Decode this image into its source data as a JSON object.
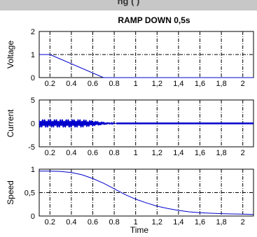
{
  "header_strip": {
    "text": "ng (           )"
  },
  "title": "RAMP DOWN 0,5s",
  "chart_data": [
    {
      "type": "line",
      "ylabel": "Voltage",
      "xlim": [
        0.1,
        2.1
      ],
      "ylim": [
        0,
        2
      ],
      "x_ticks": [
        "0.2",
        "0.4",
        "0.6",
        "0.8",
        "1",
        "1,2",
        "1,4",
        "1,6",
        "1,8",
        "2"
      ],
      "y_ticks": [
        "0",
        "1",
        "2"
      ],
      "grid": true,
      "color": "#0000cc",
      "x": [
        0.1,
        0.2,
        0.7,
        0.72,
        2.1
      ],
      "y": [
        1,
        1,
        0,
        0,
        0
      ]
    },
    {
      "type": "line",
      "ylabel": "Current",
      "xlim": [
        0.1,
        2.1
      ],
      "ylim": [
        -5,
        5
      ],
      "x_ticks": [
        "0.2",
        "0.4",
        "0.6",
        "0.8",
        "1",
        "1,2",
        "1,4",
        "1,6",
        "1,8",
        "2"
      ],
      "y_ticks": [
        "-5",
        "0",
        "5"
      ],
      "grid": true,
      "color": "#0000cc",
      "oscillation": {
        "x_start": 0.1,
        "x_end": 0.82,
        "amplitude_start": 0.9,
        "amplitude_peak": 0.9,
        "peak_x": 0.5,
        "decay_to": 0.0
      }
    },
    {
      "type": "line",
      "ylabel": "Speed",
      "xlabel": "Time",
      "xlim": [
        0.1,
        2.1
      ],
      "ylim": [
        0,
        1
      ],
      "x_ticks": [
        "0.2",
        "0.4",
        "0.6",
        "0.8",
        "1",
        "1,2",
        "1,4",
        "1,6",
        "1,8",
        "2"
      ],
      "y_ticks": [
        "0",
        "0,5",
        "1"
      ],
      "grid": true,
      "color": "#0000cc",
      "x": [
        0.1,
        0.2,
        0.3,
        0.4,
        0.5,
        0.6,
        0.7,
        0.8,
        0.9,
        1.0,
        1.1,
        1.2,
        1.3,
        1.4,
        1.5,
        1.6,
        1.7,
        1.8,
        1.9,
        2.0,
        2.1
      ],
      "y": [
        0.96,
        0.96,
        0.95,
        0.93,
        0.88,
        0.8,
        0.7,
        0.58,
        0.46,
        0.36,
        0.28,
        0.21,
        0.16,
        0.12,
        0.09,
        0.07,
        0.06,
        0.05,
        0.045,
        0.04,
        0.035
      ]
    }
  ]
}
